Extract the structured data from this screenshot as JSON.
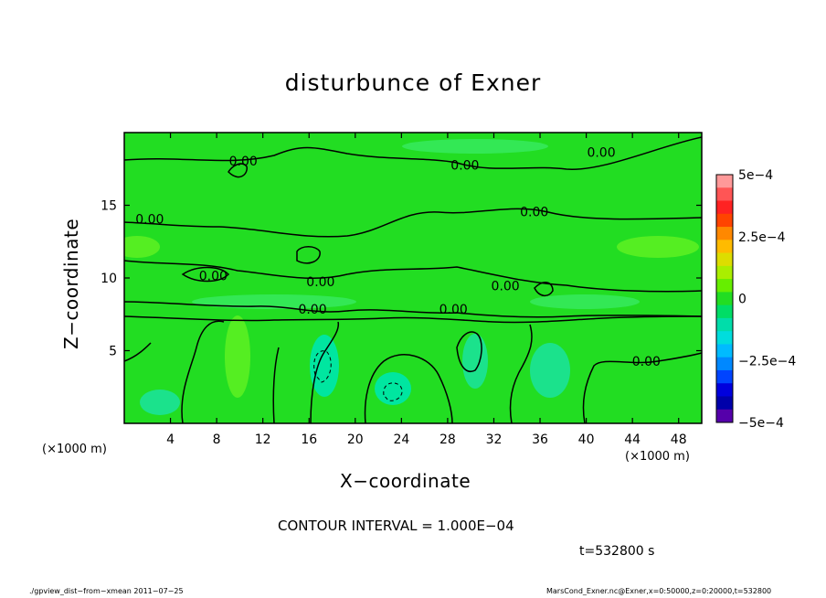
{
  "chart_data": {
    "type": "heatmap",
    "title": "disturbunce of Exner",
    "xlabel": "X−coordinate",
    "ylabel": "Z−coordinate",
    "x_unit_label": "(×1000 m)",
    "y_unit_label": "(×1000 m)",
    "xlim": [
      0,
      50
    ],
    "ylim": [
      0,
      20
    ],
    "x_ticks": [
      "4",
      "8",
      "12",
      "16",
      "20",
      "24",
      "28",
      "32",
      "36",
      "40",
      "44",
      "48"
    ],
    "y_ticks": [
      "5",
      "10",
      "15"
    ],
    "colorbar": {
      "range": [
        -0.0005,
        0.0005
      ],
      "tick_labels": [
        "5e−4",
        "2.5e−4",
        "0",
        "−2.5e−4",
        "−5e−4"
      ],
      "tick_values": [
        0.0005,
        0.00025,
        0,
        -0.00025,
        -0.0005
      ]
    },
    "contour_labels": [
      {
        "text": "0.00",
        "x": 10.3,
        "y": 18.0
      },
      {
        "text": "0.00",
        "x": 29.5,
        "y": 17.7
      },
      {
        "text": "0.00",
        "x": 41.3,
        "y": 18.6
      },
      {
        "text": "0.00",
        "x": 2.2,
        "y": 14.0
      },
      {
        "text": "0.00",
        "x": 35.5,
        "y": 14.5
      },
      {
        "text": "0.00",
        "x": 7.7,
        "y": 10.1
      },
      {
        "text": "0.00",
        "x": 17.0,
        "y": 9.7
      },
      {
        "text": "0.00",
        "x": 33.0,
        "y": 9.4
      },
      {
        "text": "0.00",
        "x": 16.3,
        "y": 7.8
      },
      {
        "text": "0.00",
        "x": 28.5,
        "y": 7.8
      },
      {
        "text": "0.00",
        "x": 45.2,
        "y": 4.2
      }
    ],
    "contour_interval": "CONTOUR INTERVAL = 1.000E−04",
    "legend": "colorbar-right"
  },
  "time_label": "t=532800  s",
  "footer_left": "./gpview_dist−from−xmean   2011−07−25",
  "footer_right": "MarsCond_Exner.nc@Exner,x=0:50000,z=0:20000,t=532800"
}
